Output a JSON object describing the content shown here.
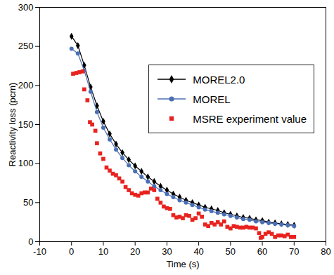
{
  "chart_data": {
    "type": "line",
    "x_label": "Time (s)",
    "y_label": "Reactivity loss (pcm)",
    "xlim": [
      -10,
      80
    ],
    "xticks": [
      -10,
      0,
      10,
      20,
      30,
      40,
      50,
      60,
      70,
      80
    ],
    "ylim": [
      0,
      300
    ],
    "yticks": [
      0,
      50,
      100,
      150,
      200,
      250,
      300
    ],
    "grid": false,
    "legend": "upper right",
    "series": [
      {
        "name": "MOREL2.0",
        "color": "#000000",
        "marker": "diamond",
        "line_style": "solid",
        "x": [
          0,
          2,
          4,
          6,
          8,
          10,
          12,
          14,
          16,
          18,
          20,
          22,
          24,
          26,
          28,
          30,
          32,
          34,
          36,
          38,
          40,
          42,
          44,
          46,
          48,
          50,
          52,
          54,
          56,
          58,
          60,
          62,
          64,
          66,
          68,
          70
        ],
        "values": [
          263,
          251,
          226,
          198,
          174,
          154,
          138,
          125,
          114,
          105,
          97,
          90,
          83,
          77,
          71,
          66,
          61,
          57,
          53,
          50,
          47,
          44,
          42,
          40,
          37,
          35,
          33,
          31,
          30,
          28,
          27,
          25,
          24,
          23,
          22,
          21
        ]
      },
      {
        "name": "MOREL",
        "color": "#4a6fb5",
        "marker": "circle",
        "line_style": "solid",
        "x": [
          0,
          2,
          4,
          6,
          8,
          10,
          12,
          14,
          16,
          18,
          20,
          22,
          24,
          26,
          28,
          30,
          32,
          34,
          36,
          38,
          40,
          42,
          44,
          46,
          48,
          50,
          52,
          54,
          56,
          58,
          60,
          62,
          64,
          66,
          68,
          70
        ],
        "values": [
          247,
          241,
          219,
          192,
          166,
          146,
          131,
          118,
          107,
          98,
          90,
          83,
          77,
          71,
          66,
          61,
          57,
          53,
          50,
          47,
          44,
          41,
          39,
          37,
          35,
          33,
          31,
          29,
          28,
          26,
          25,
          24,
          23,
          22,
          21,
          20
        ]
      },
      {
        "name": "MSRE experiment value",
        "color": "#e8231f",
        "marker": "square",
        "line_style": "none",
        "x": [
          0.5,
          1.5,
          2.5,
          3.5,
          4,
          5,
          5.8,
          6.5,
          7.5,
          8,
          9,
          10,
          11,
          12,
          13,
          14,
          15,
          16,
          17,
          18,
          19,
          20,
          21,
          22,
          23,
          24,
          25,
          26,
          27,
          28,
          29,
          30,
          31,
          32,
          33,
          34,
          35,
          36,
          37,
          38,
          39,
          40,
          41,
          42,
          43,
          44,
          45,
          46,
          47,
          48,
          49,
          50,
          51,
          52,
          53,
          54,
          55,
          56,
          57,
          58,
          59,
          59.5,
          60,
          61,
          62,
          63,
          64,
          65,
          66,
          67,
          68,
          69,
          70
        ],
        "values": [
          215,
          216,
          217,
          218,
          195,
          181,
          153,
          150,
          142,
          126,
          113,
          106,
          95,
          91,
          87,
          85,
          81,
          77,
          70,
          66,
          62,
          60,
          59,
          62,
          63,
          63,
          68,
          66,
          55,
          50,
          45,
          43,
          42,
          34,
          31,
          32,
          30,
          34,
          33,
          28,
          30,
          36,
          32,
          22,
          20,
          24,
          22,
          25,
          22,
          26,
          19,
          17,
          20,
          19,
          18,
          18,
          19,
          18,
          18,
          17,
          11,
          5,
          6,
          10,
          12,
          10,
          6,
          8,
          8,
          7,
          9,
          6,
          6
        ]
      }
    ]
  }
}
